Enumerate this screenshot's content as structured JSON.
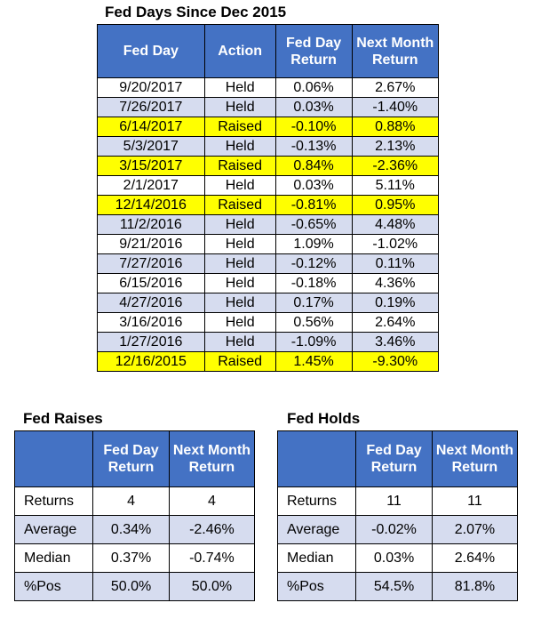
{
  "main": {
    "title": "Fed Days Since Dec 2015",
    "headers": [
      "Fed Day",
      "Action",
      "Fed Day Return",
      "Next Month Return"
    ],
    "rows": [
      {
        "date": "9/20/2017",
        "action": "Held",
        "day_return": "0.06%",
        "next_month": "2.67%",
        "highlight": "white"
      },
      {
        "date": "7/26/2017",
        "action": "Held",
        "day_return": "0.03%",
        "next_month": "-1.40%",
        "highlight": "blue"
      },
      {
        "date": "6/14/2017",
        "action": "Raised",
        "day_return": "-0.10%",
        "next_month": "0.88%",
        "highlight": "yellow"
      },
      {
        "date": "5/3/2017",
        "action": "Held",
        "day_return": "-0.13%",
        "next_month": "2.13%",
        "highlight": "blue"
      },
      {
        "date": "3/15/2017",
        "action": "Raised",
        "day_return": "0.84%",
        "next_month": "-2.36%",
        "highlight": "yellow"
      },
      {
        "date": "2/1/2017",
        "action": "Held",
        "day_return": "0.03%",
        "next_month": "5.11%",
        "highlight": "white"
      },
      {
        "date": "12/14/2016",
        "action": "Raised",
        "day_return": "-0.81%",
        "next_month": "0.95%",
        "highlight": "yellow"
      },
      {
        "date": "11/2/2016",
        "action": "Held",
        "day_return": "-0.65%",
        "next_month": "4.48%",
        "highlight": "blue"
      },
      {
        "date": "9/21/2016",
        "action": "Held",
        "day_return": "1.09%",
        "next_month": "-1.02%",
        "highlight": "white"
      },
      {
        "date": "7/27/2016",
        "action": "Held",
        "day_return": "-0.12%",
        "next_month": "0.11%",
        "highlight": "blue"
      },
      {
        "date": "6/15/2016",
        "action": "Held",
        "day_return": "-0.18%",
        "next_month": "4.36%",
        "highlight": "white"
      },
      {
        "date": "4/27/2016",
        "action": "Held",
        "day_return": "0.17%",
        "next_month": "0.19%",
        "highlight": "blue"
      },
      {
        "date": "3/16/2016",
        "action": "Held",
        "day_return": "0.56%",
        "next_month": "2.64%",
        "highlight": "white"
      },
      {
        "date": "1/27/2016",
        "action": "Held",
        "day_return": "-1.09%",
        "next_month": "3.46%",
        "highlight": "blue"
      },
      {
        "date": "12/16/2015",
        "action": "Raised",
        "day_return": "1.45%",
        "next_month": "-9.30%",
        "highlight": "yellow"
      }
    ]
  },
  "raises": {
    "title": "Fed Raises",
    "headers": [
      "",
      "Fed Day Return",
      "Next Month Return"
    ],
    "rows": [
      {
        "label": "Returns",
        "day": "4",
        "month": "4"
      },
      {
        "label": "Average",
        "day": "0.34%",
        "month": "-2.46%"
      },
      {
        "label": "Median",
        "day": "0.37%",
        "month": "-0.74%"
      },
      {
        "label": "%Pos",
        "day": "50.0%",
        "month": "50.0%"
      }
    ]
  },
  "holds": {
    "title": "Fed Holds",
    "headers": [
      "",
      "Fed Day Return",
      "Next Month Return"
    ],
    "rows": [
      {
        "label": "Returns",
        "day": "11",
        "month": "11"
      },
      {
        "label": "Average",
        "day": "-0.02%",
        "month": "2.07%"
      },
      {
        "label": "Median",
        "day": "0.03%",
        "month": "2.64%"
      },
      {
        "label": "%Pos",
        "day": "54.5%",
        "month": "81.8%"
      }
    ]
  },
  "colors": {
    "header": "#4472c4",
    "band": "#d6dcef",
    "highlight": "#ffff00"
  }
}
